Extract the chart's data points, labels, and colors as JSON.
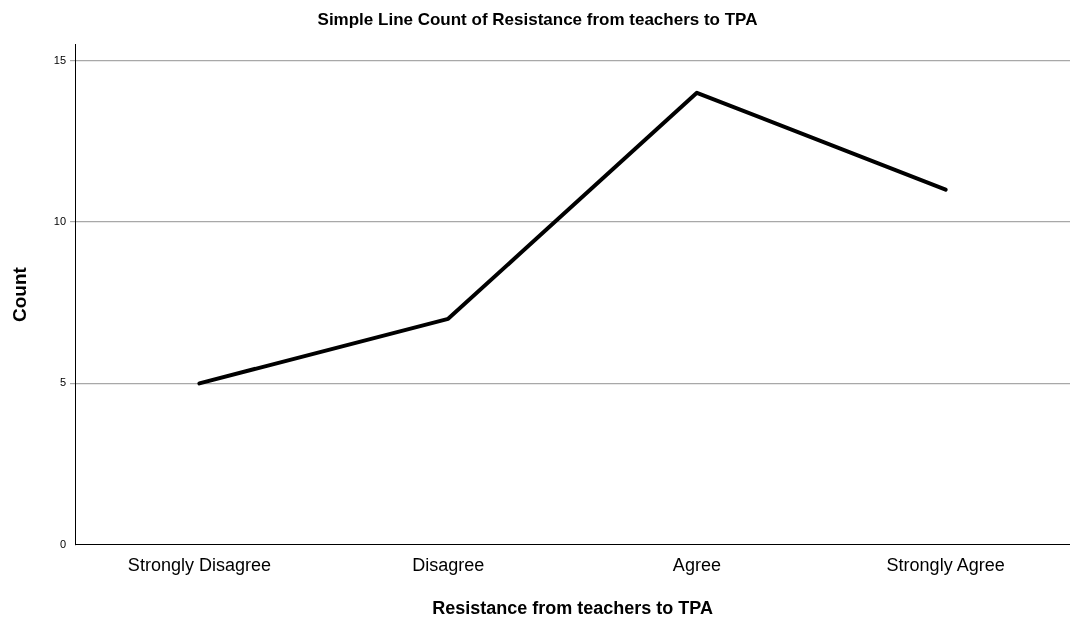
{
  "chart_data": {
    "type": "line",
    "title": "Simple Line Count of Resistance from teachers to TPA",
    "xlabel": "Resistance from teachers to TPA",
    "ylabel": "Count",
    "categories": [
      "Strongly Disagree",
      "Disagree",
      "Agree",
      "Strongly Agree"
    ],
    "series": [
      {
        "color": "#000000",
        "values": [
          5,
          7,
          14,
          11
        ]
      }
    ],
    "ylim": [
      0,
      15.5
    ],
    "yticks": [
      0,
      5,
      10,
      15
    ],
    "grid": "y",
    "legend": false,
    "marker": "none",
    "line_style": "solid"
  }
}
